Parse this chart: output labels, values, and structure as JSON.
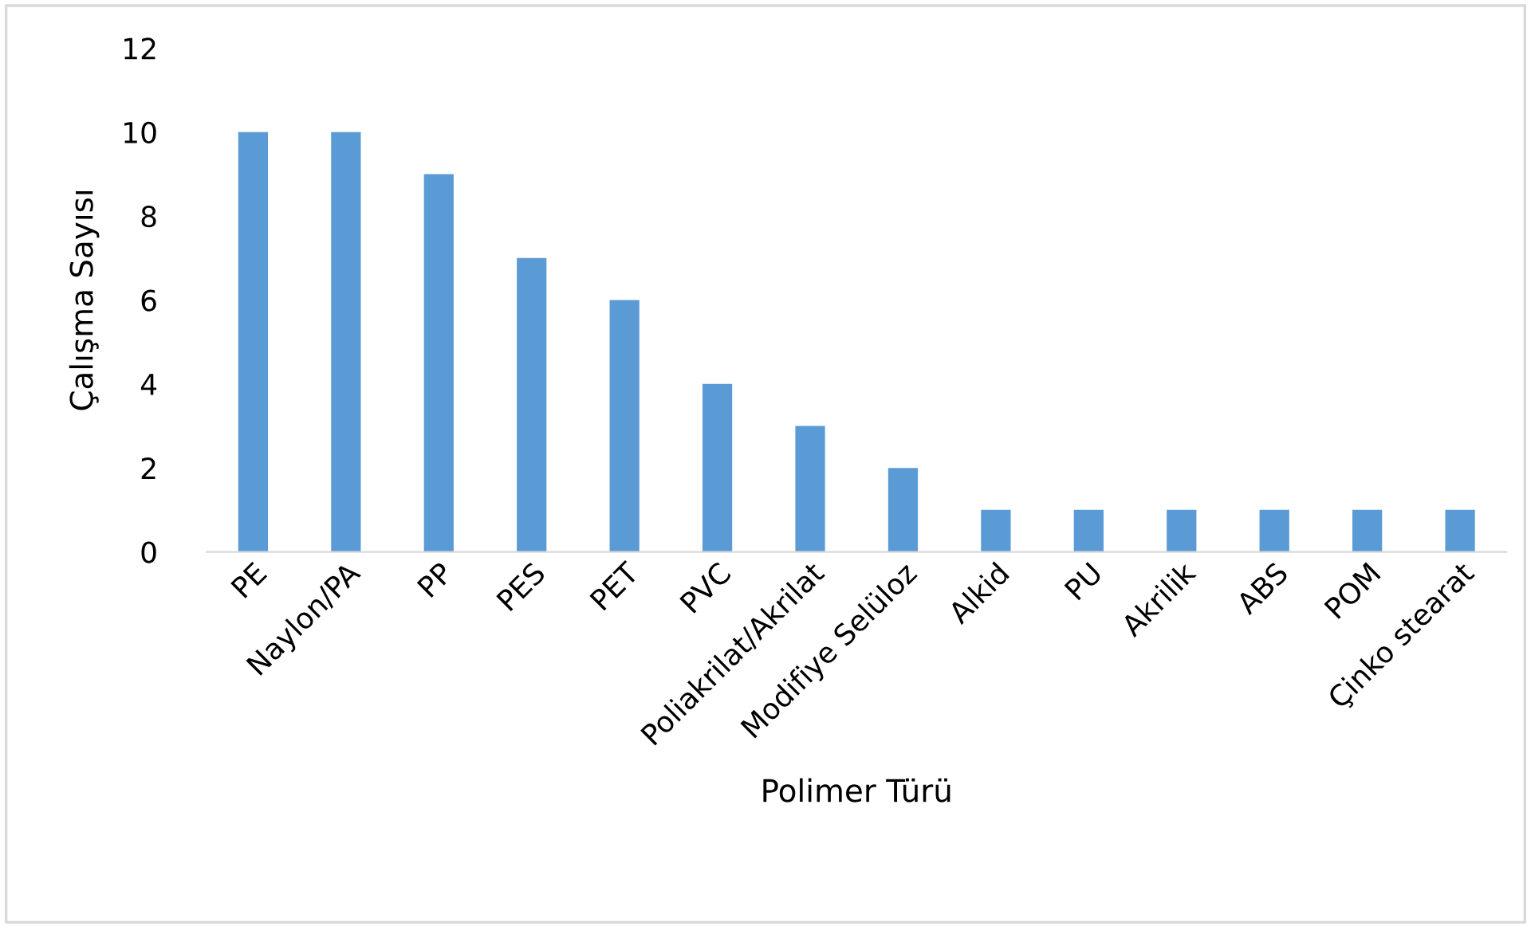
{
  "chart_data": {
    "type": "bar",
    "xlabel": "Polimer Türü",
    "ylabel": "Çalışma Sayısı",
    "categories": [
      "PE",
      "Naylon/PA",
      "PP",
      "PES",
      "PET",
      "PVC",
      "Poliakrilat/Akrilat",
      "Modifiye Selüloz",
      "Alkid",
      "PU",
      "Akrilik",
      "ABS",
      "POM",
      "Çinko stearat"
    ],
    "values": [
      10,
      10,
      9,
      7,
      6,
      4,
      3,
      2,
      1,
      1,
      1,
      1,
      1,
      1
    ],
    "color": "#5b9bd5",
    "ylim": [
      0,
      12
    ],
    "yticks": [
      0,
      2,
      4,
      6,
      8,
      10,
      12
    ],
    "grid": false,
    "legend": false
  }
}
